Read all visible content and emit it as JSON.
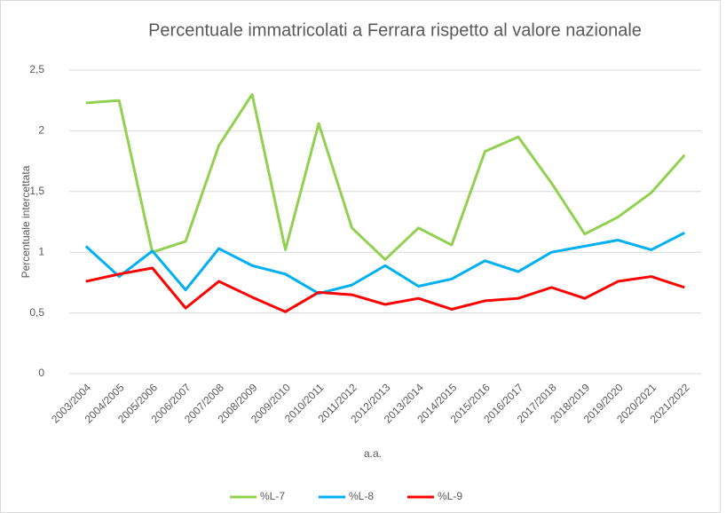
{
  "chart_data": {
    "type": "line",
    "title": "Percentuale immatricolati a Ferrara rispetto al valore nazionale",
    "x_label": "a.a.",
    "y_label": "Percentuale intercettata",
    "categories": [
      "2003/2004",
      "2004/2005",
      "2005/2006",
      "2006/2007",
      "2007/2008",
      "2008/2009",
      "2009/2010",
      "2010/2011",
      "2011/2012",
      "2012/2013",
      "2013/2014",
      "2014/2015",
      "2015/2016",
      "2016/2017",
      "2017/2018",
      "2018/2019",
      "2019/2020",
      "2020/2021",
      "2021/2022"
    ],
    "series": [
      {
        "name": "%L-7",
        "color": "#92d050",
        "values": [
          2.23,
          2.25,
          1.0,
          1.09,
          1.88,
          2.3,
          1.02,
          2.06,
          1.2,
          0.94,
          1.2,
          1.06,
          1.83,
          1.95,
          1.57,
          1.15,
          1.29,
          1.49,
          1.8
        ]
      },
      {
        "name": "%L-8",
        "color": "#00b0f0",
        "values": [
          1.05,
          0.8,
          1.01,
          0.69,
          1.03,
          0.89,
          0.82,
          0.66,
          0.73,
          0.89,
          0.72,
          0.78,
          0.93,
          0.84,
          1.0,
          1.05,
          1.1,
          1.02,
          1.16
        ]
      },
      {
        "name": "%L-9",
        "color": "#ff0000",
        "values": [
          0.76,
          0.82,
          0.87,
          0.54,
          0.76,
          0.63,
          0.51,
          0.67,
          0.65,
          0.57,
          0.62,
          0.53,
          0.6,
          0.62,
          0.71,
          0.62,
          0.76,
          0.8,
          0.71
        ]
      }
    ],
    "ylim": [
      0,
      2.5
    ],
    "yticks": [
      0,
      {
        "value": 0.5,
        "label": "0,5"
      },
      1,
      {
        "value": 1.5,
        "label": "1,5"
      },
      2,
      {
        "value": 2.5,
        "label": "2,5"
      }
    ],
    "grid": true,
    "legend": "bottom"
  }
}
